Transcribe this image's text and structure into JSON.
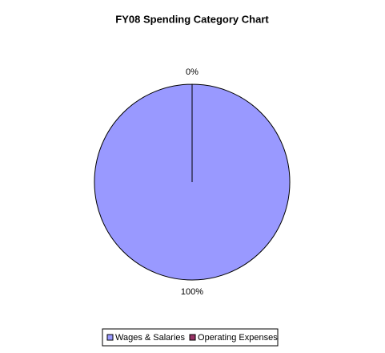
{
  "chart_data": {
    "type": "pie",
    "title": "FY08 Spending Category Chart",
    "categories": [
      "Wages & Salaries",
      "Operating Expenses"
    ],
    "values": [
      100,
      0
    ],
    "value_labels": [
      "100%",
      "0%"
    ],
    "colors": [
      "#9999ff",
      "#993366"
    ],
    "legend": "bottom"
  }
}
